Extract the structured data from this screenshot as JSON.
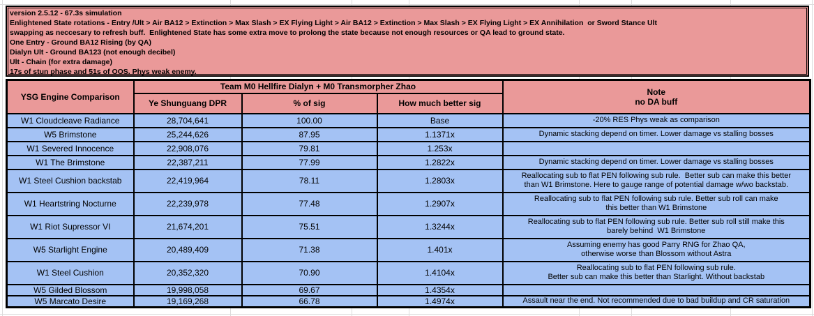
{
  "colors": {
    "info_bg": "#ea9999",
    "header_bg": "#ea9999",
    "row_bg": "#a4c2f4",
    "border": "#000000",
    "gridline": "#dcdcdc"
  },
  "info": {
    "lines": [
      "version 2.5.12 - 67.3s simulation",
      "Enlightened State rotations - Entry /Ult > Air BA12 > Extinction > Max Slash > EX Flying Light > Air BA12 > Extinction > Max Slash > EX Flying Light > EX Annihilation  or Sword Stance Ult",
      "swapping as neccesary to refresh buff.  Enlightened State has some extra move to prolong the state because not enough resources or QA lead to ground state.",
      "One Entry - Ground BA12 Rising (by QA)",
      "Dialyn Ult - Ground BA123 (not enough decibel)",
      "Ult - Chain (for extra damage)",
      "17s of stun phase and 51s of OOS. Phys weak enemy."
    ]
  },
  "table": {
    "col1_header": "YSG Engine Comparison",
    "team_header": "Team M0 Hellfire Dialyn + M0 Transmorpher Zhao",
    "sub_headers": [
      "Ye Shunguang DPR",
      "% of sig",
      "How much better sig"
    ],
    "note_header": "Note\nno DA buff",
    "rows": [
      {
        "engine": "W1 Cloudcleave Radiance",
        "dpr": "28,704,641",
        "pct": "100.00",
        "better": "Base",
        "note": "-20% RES Phys weak as comparison"
      },
      {
        "engine": "W5 Brimstone",
        "dpr": "25,244,626",
        "pct": "87.95",
        "better": "1.1371x",
        "note": "Dynamic stacking depend on timer. Lower damage vs stalling bosses"
      },
      {
        "engine": "W1 Severed Innocence",
        "dpr": "22,908,076",
        "pct": "79.81",
        "better": "1.253x",
        "note": ""
      },
      {
        "engine": "W1 The Brimstone",
        "dpr": "22,387,211",
        "pct": "77.99",
        "better": "1.2822x",
        "note": "Dynamic stacking depend on timer. Lower damage vs stalling bosses"
      },
      {
        "engine": "W1 Steel Cushion backstab",
        "dpr": "22,419,964",
        "pct": "78.11",
        "better": "1.2803x",
        "note": "Reallocating sub to flat PEN following sub rule.  Better sub can make this better\nthan W1 Brimstone. Here to gauge range of potential damage w/wo backstab."
      },
      {
        "engine": "W1 Heartstring Nocturne",
        "dpr": "22,239,978",
        "pct": "77.48",
        "better": "1.2907x",
        "note": "Reallocating sub to flat PEN following sub rule. Better sub roll can make\nthis better than W1 Brimstone"
      },
      {
        "engine": "W1 Riot Supressor VI",
        "dpr": "21,674,201",
        "pct": "75.51",
        "better": "1.3244x",
        "note": "Reallocating sub to flat PEN following sub rule. Better sub roll still make this\nbarely behind  W1 Brimstone"
      },
      {
        "engine": "W5 Starlight Engine",
        "dpr": "20,489,409",
        "pct": "71.38",
        "better": "1.401x",
        "note": "Assuming enemy has good Parry RNG for Zhao QA,\notherwise worse than Blossom without Astra"
      },
      {
        "engine": "W1 Steel Cushion",
        "dpr": "20,352,320",
        "pct": "70.90",
        "better": "1.4104x",
        "note": "Reallocating sub to flat PEN following sub rule.\nBetter sub can make this better than Starlight. Without backstab"
      },
      {
        "engine": "W5 Gilded Blossom",
        "dpr": "19,998,058",
        "pct": "69.67",
        "better": "1.4354x",
        "note": ""
      },
      {
        "engine": "W5 Marcato Desire",
        "dpr": "19,169,268",
        "pct": "66.78",
        "better": "1.4974x",
        "note": "Assault near the end. Not recommended due to bad buildup and CR saturation"
      }
    ]
  }
}
